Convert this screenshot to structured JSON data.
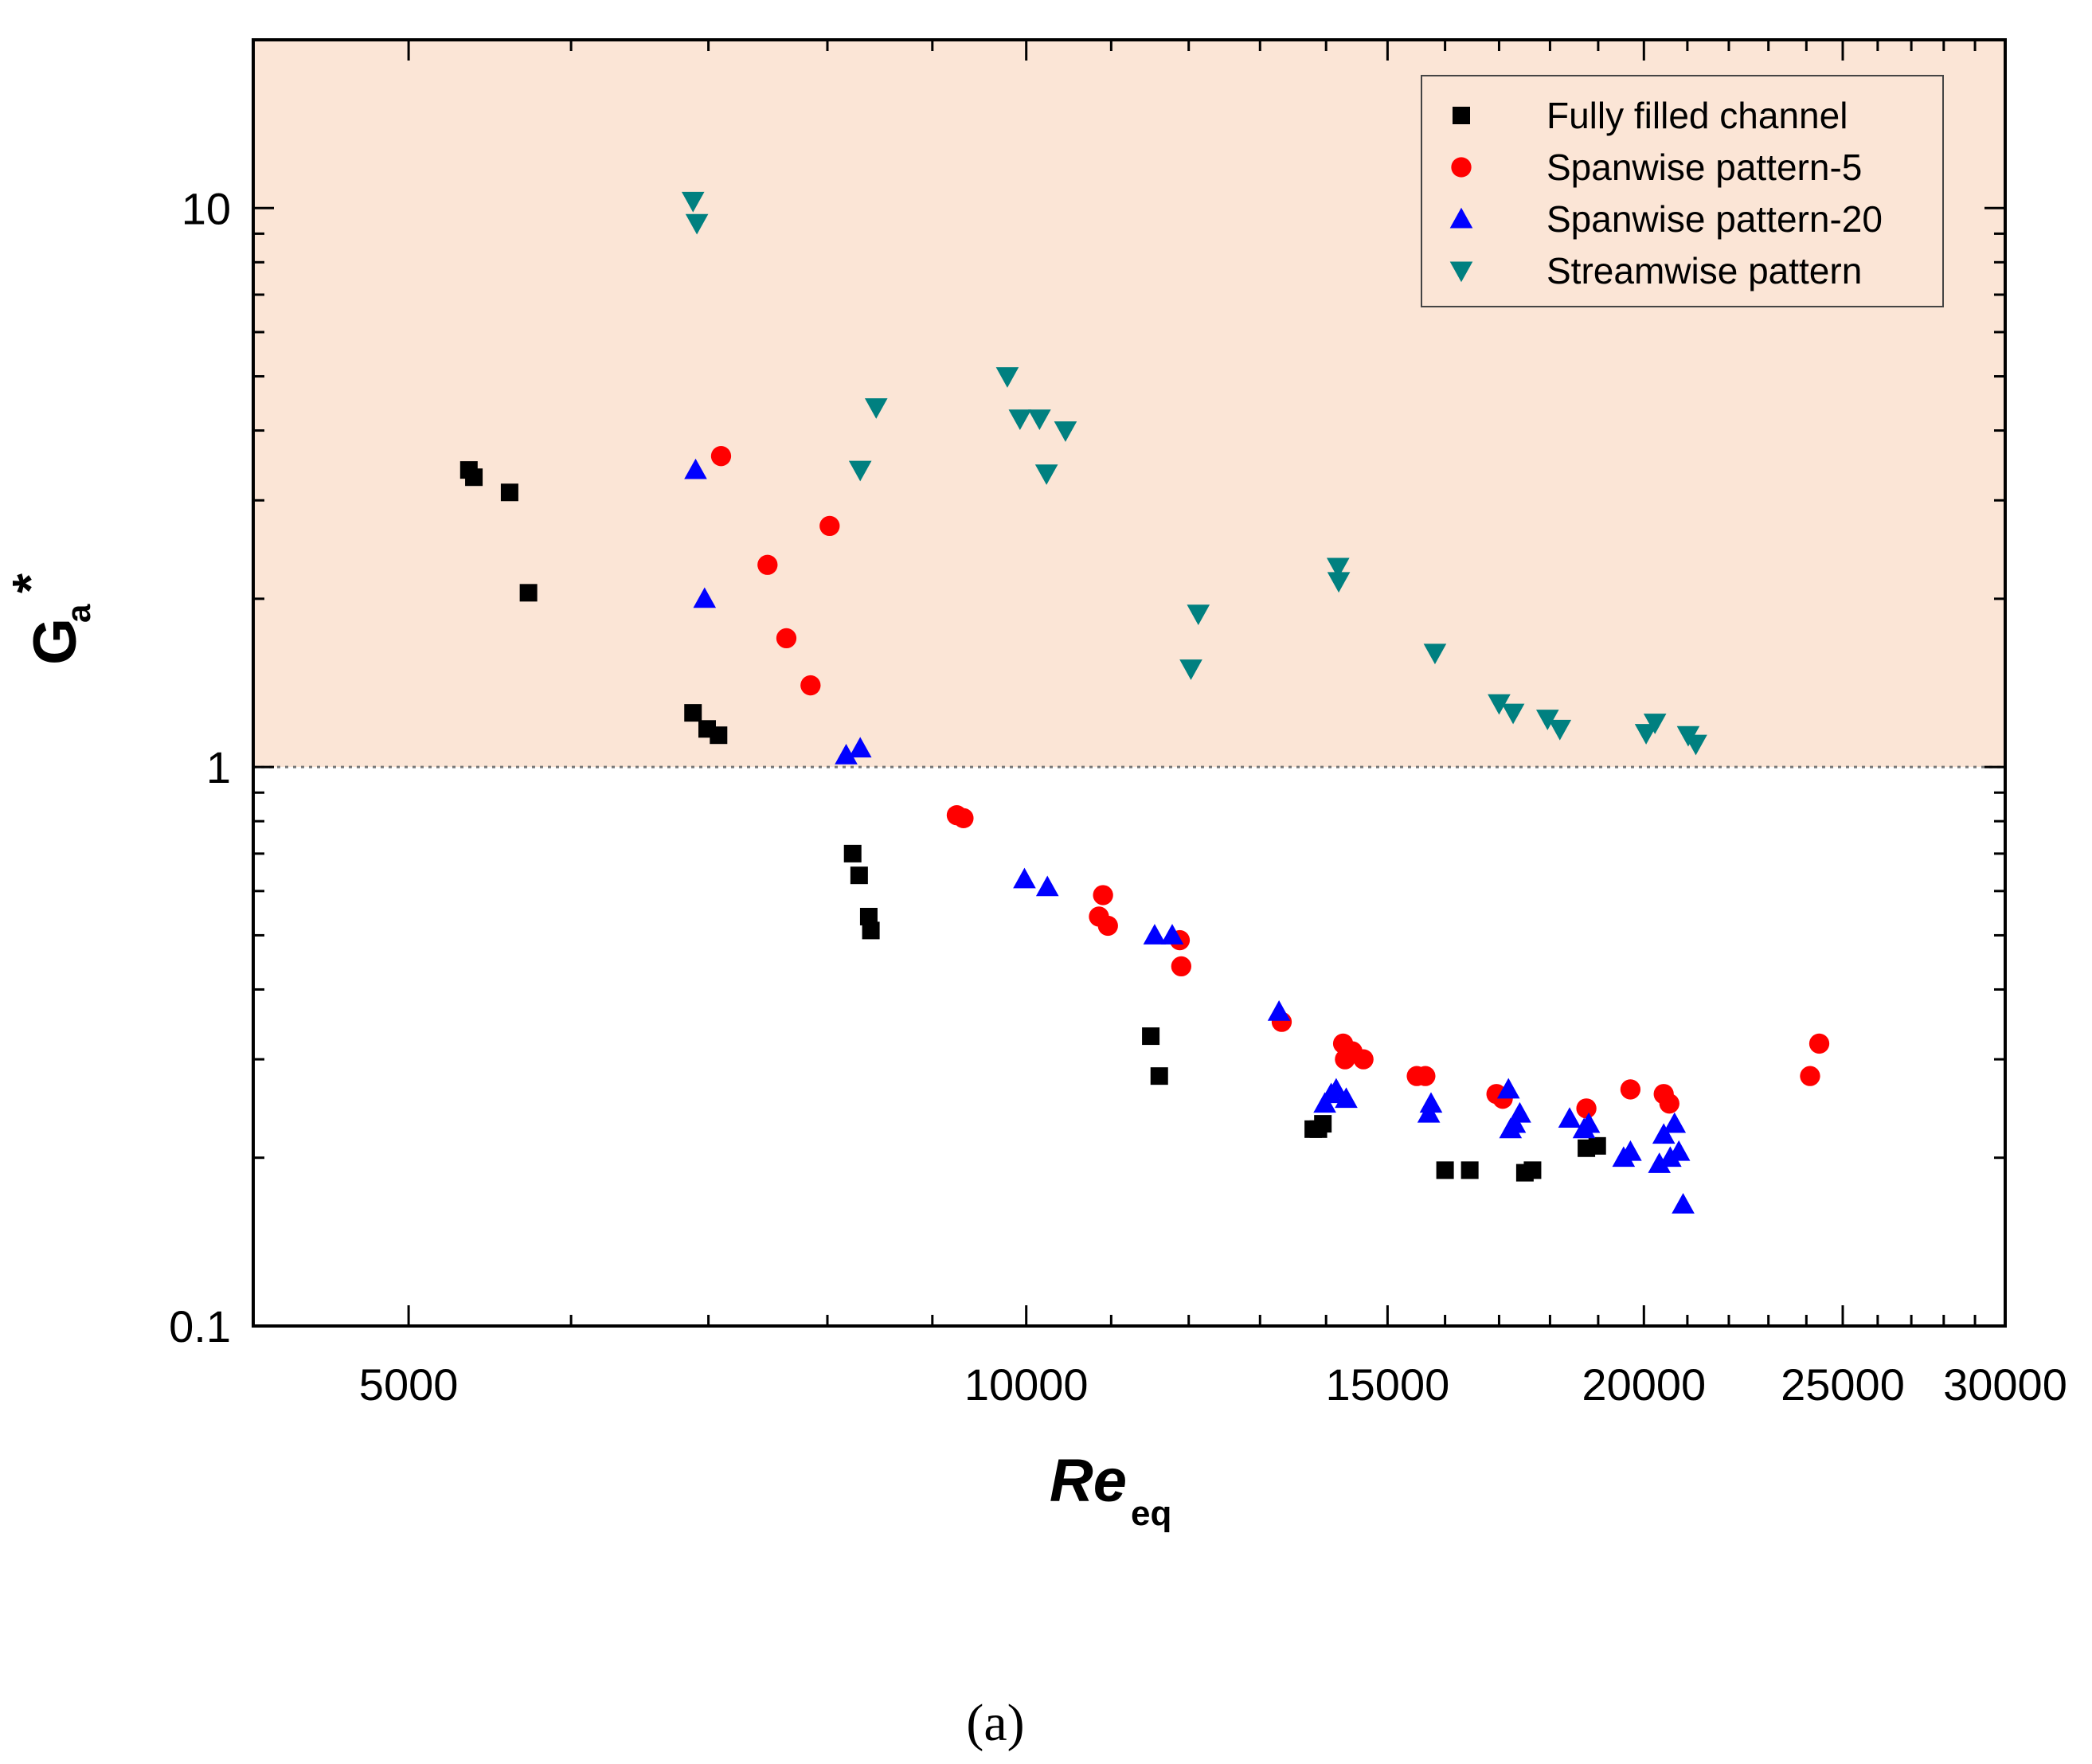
{
  "chart_data": {
    "type": "scatter",
    "title": "",
    "xlabel": "Re",
    "xlabel_sub": "eq",
    "ylabel": "G",
    "ylabel_sup": "*",
    "ylabel_sub": "a",
    "x_scale": "log",
    "y_scale": "log",
    "xlim": [
      4200,
      30000
    ],
    "ylim": [
      0.1,
      20
    ],
    "x_ticks": [
      5000,
      10000,
      15000,
      20000,
      25000,
      30000
    ],
    "x_tick_labels": [
      "5000",
      "10000",
      "15000",
      "20000",
      "25000",
      "30000"
    ],
    "y_ticks": [
      0.1,
      1,
      10
    ],
    "y_tick_labels": [
      "0.1",
      "1",
      "10"
    ],
    "threshold_line": 1,
    "shaded_region": "G > 1",
    "legend_position": "top-right",
    "caption": "(a)",
    "series": [
      {
        "name": "Fully filled channel",
        "marker": "square",
        "color": "#000000",
        "points": [
          [
            5350,
            3.4
          ],
          [
            5380,
            3.3
          ],
          [
            5600,
            3.1
          ],
          [
            5720,
            2.05
          ],
          [
            6880,
            1.25
          ],
          [
            6990,
            1.17
          ],
          [
            7080,
            1.14
          ],
          [
            8230,
            0.7
          ],
          [
            8290,
            0.64
          ],
          [
            8380,
            0.54
          ],
          [
            8400,
            0.51
          ],
          [
            11500,
            0.33
          ],
          [
            11610,
            0.28
          ],
          [
            13800,
            0.225
          ],
          [
            13880,
            0.225
          ],
          [
            13950,
            0.23
          ],
          [
            16000,
            0.19
          ],
          [
            16450,
            0.19
          ],
          [
            17500,
            0.188
          ],
          [
            17650,
            0.19
          ],
          [
            18750,
            0.208
          ],
          [
            18980,
            0.21
          ]
        ]
      },
      {
        "name": "Spanwise pattern-5",
        "marker": "circle",
        "color": "#ff0000",
        "points": [
          [
            7100,
            3.6
          ],
          [
            7480,
            2.3
          ],
          [
            7640,
            1.7
          ],
          [
            7850,
            1.4
          ],
          [
            8020,
            2.7
          ],
          [
            9250,
            0.82
          ],
          [
            9320,
            0.81
          ],
          [
            10900,
            0.59
          ],
          [
            10850,
            0.54
          ],
          [
            10960,
            0.52
          ],
          [
            11880,
            0.49
          ],
          [
            11900,
            0.44
          ],
          [
            13320,
            0.35
          ],
          [
            14270,
            0.32
          ],
          [
            14300,
            0.3
          ],
          [
            14420,
            0.31
          ],
          [
            14600,
            0.3
          ],
          [
            15500,
            0.28
          ],
          [
            15650,
            0.28
          ],
          [
            16950,
            0.26
          ],
          [
            17070,
            0.255
          ],
          [
            18750,
            0.245
          ],
          [
            19700,
            0.265
          ],
          [
            20450,
            0.26
          ],
          [
            20580,
            0.25
          ],
          [
            24100,
            0.28
          ],
          [
            24350,
            0.32
          ]
        ]
      },
      {
        "name": "Spanwise pattern-20",
        "marker": "triangle-up",
        "color": "#0000ff",
        "points": [
          [
            6900,
            3.4
          ],
          [
            6970,
            2.0
          ],
          [
            8170,
            1.05
          ],
          [
            8300,
            1.08
          ],
          [
            9980,
            0.63
          ],
          [
            10240,
            0.61
          ],
          [
            11550,
            0.5
          ],
          [
            11780,
            0.5
          ],
          [
            13280,
            0.365
          ],
          [
            13980,
            0.25
          ],
          [
            14080,
            0.26
          ],
          [
            14160,
            0.265
          ],
          [
            14320,
            0.255
          ],
          [
            15710,
            0.24
          ],
          [
            15750,
            0.25
          ],
          [
            17180,
            0.265
          ],
          [
            17220,
            0.225
          ],
          [
            17300,
            0.23
          ],
          [
            17400,
            0.24
          ],
          [
            18400,
            0.235
          ],
          [
            18700,
            0.225
          ],
          [
            18800,
            0.23
          ],
          [
            19550,
            0.2
          ],
          [
            19700,
            0.205
          ],
          [
            20350,
            0.195
          ],
          [
            20450,
            0.22
          ],
          [
            20600,
            0.2
          ],
          [
            20700,
            0.23
          ],
          [
            20800,
            0.205
          ],
          [
            20900,
            0.165
          ]
        ]
      },
      {
        "name": "Streamwise pattern",
        "marker": "triangle-down",
        "color": "#008080",
        "points": [
          [
            6880,
            10.3
          ],
          [
            6910,
            9.4
          ],
          [
            8300,
            3.4
          ],
          [
            8450,
            4.4
          ],
          [
            9790,
            5.0
          ],
          [
            9930,
            4.2
          ],
          [
            10150,
            4.2
          ],
          [
            10230,
            3.35
          ],
          [
            10450,
            4.0
          ],
          [
            12030,
            1.5
          ],
          [
            12130,
            1.88
          ],
          [
            14190,
            2.28
          ],
          [
            14200,
            2.15
          ],
          [
            15820,
            1.6
          ],
          [
            17000,
            1.3
          ],
          [
            17270,
            1.25
          ],
          [
            17950,
            1.22
          ],
          [
            18200,
            1.17
          ],
          [
            20050,
            1.15
          ],
          [
            20250,
            1.2
          ],
          [
            21020,
            1.14
          ],
          [
            21200,
            1.1
          ]
        ]
      }
    ]
  }
}
